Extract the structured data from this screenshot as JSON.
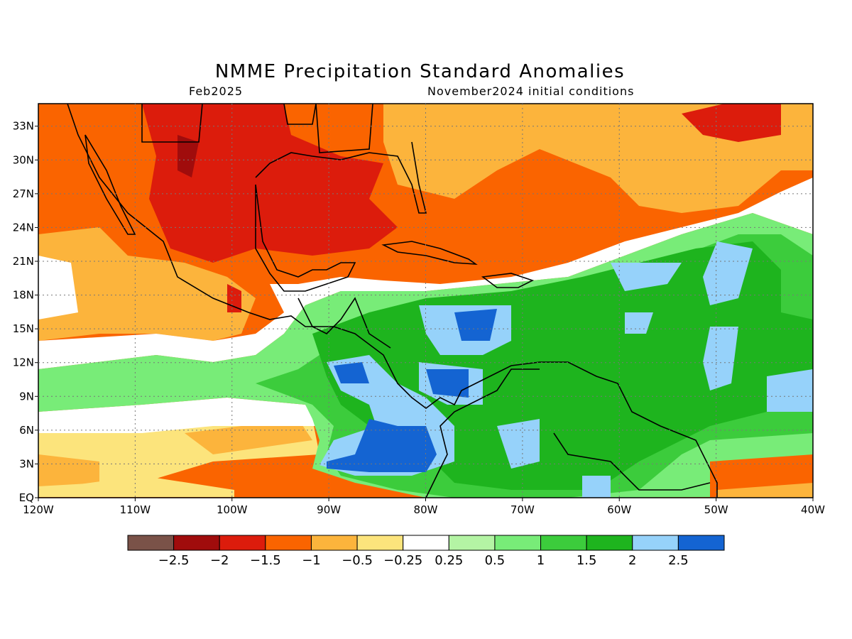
{
  "title": "NMME Precipitation Standard Anomalies",
  "valid_month": "Feb2025",
  "initial_conditions": "November2024 initial conditions",
  "axes": {
    "lon_labels": [
      "120W",
      "110W",
      "100W",
      "90W",
      "80W",
      "70W",
      "60W",
      "50W",
      "40W"
    ],
    "lat_labels": [
      "EQ",
      "3N",
      "6N",
      "9N",
      "12N",
      "15N",
      "18N",
      "21N",
      "24N",
      "27N",
      "30N",
      "33N"
    ],
    "lon_range": [
      -120,
      -40
    ],
    "lat_range": [
      0,
      35
    ],
    "grid": "dotted"
  },
  "colorbar": {
    "colors": [
      "#7a5248",
      "#a00c0c",
      "#dc1c0c",
      "#fa6400",
      "#fcb43c",
      "#fce47c",
      "#ffffff",
      "#b4f4a4",
      "#78ec78",
      "#3ccc3c",
      "#1eb41e",
      "#96d2fa",
      "#1464d2"
    ],
    "labels": [
      "−2.5",
      "−2",
      "−1.5",
      "−1",
      "−0.5",
      "−0.25",
      "0.25",
      "0.5",
      "1",
      "1.5",
      "2",
      "2.5"
    ]
  },
  "colors": {
    "strong_dry": "#dc1c0c",
    "dry": "#fa6400",
    "weak_dry": "#fcb43c",
    "neutral": "#ffffff",
    "weak_wet": "#78ec78",
    "wet": "#1eb41e",
    "very_wet": "#96d2fa",
    "extreme_wet": "#1464d2"
  }
}
